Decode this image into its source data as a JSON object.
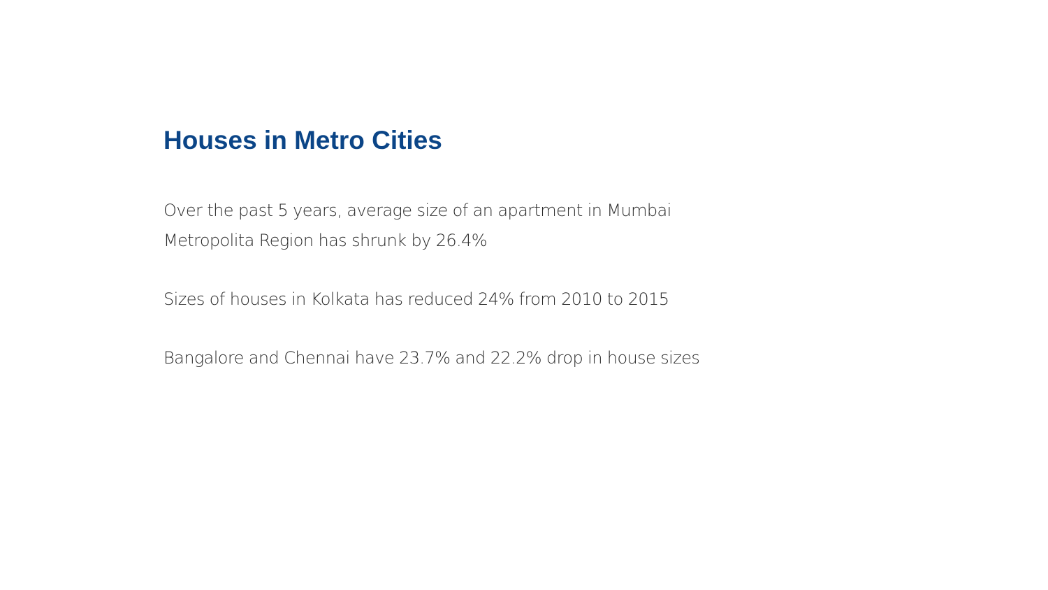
{
  "slide": {
    "title": "Houses in Metro Cities",
    "paragraphs": [
      {
        "lines": [
          "Over the past 5 years, average size of an apartment in Mumbai",
          "Metropolita Region has shrunk by 26.4%"
        ]
      },
      {
        "lines": [
          "Sizes of houses in Kolkata has reduced 24% from 2010 to 2015"
        ]
      },
      {
        "lines": [
          "Bangalore and Chennai have 23.7% and 22.2% drop in house sizes"
        ]
      }
    ]
  }
}
